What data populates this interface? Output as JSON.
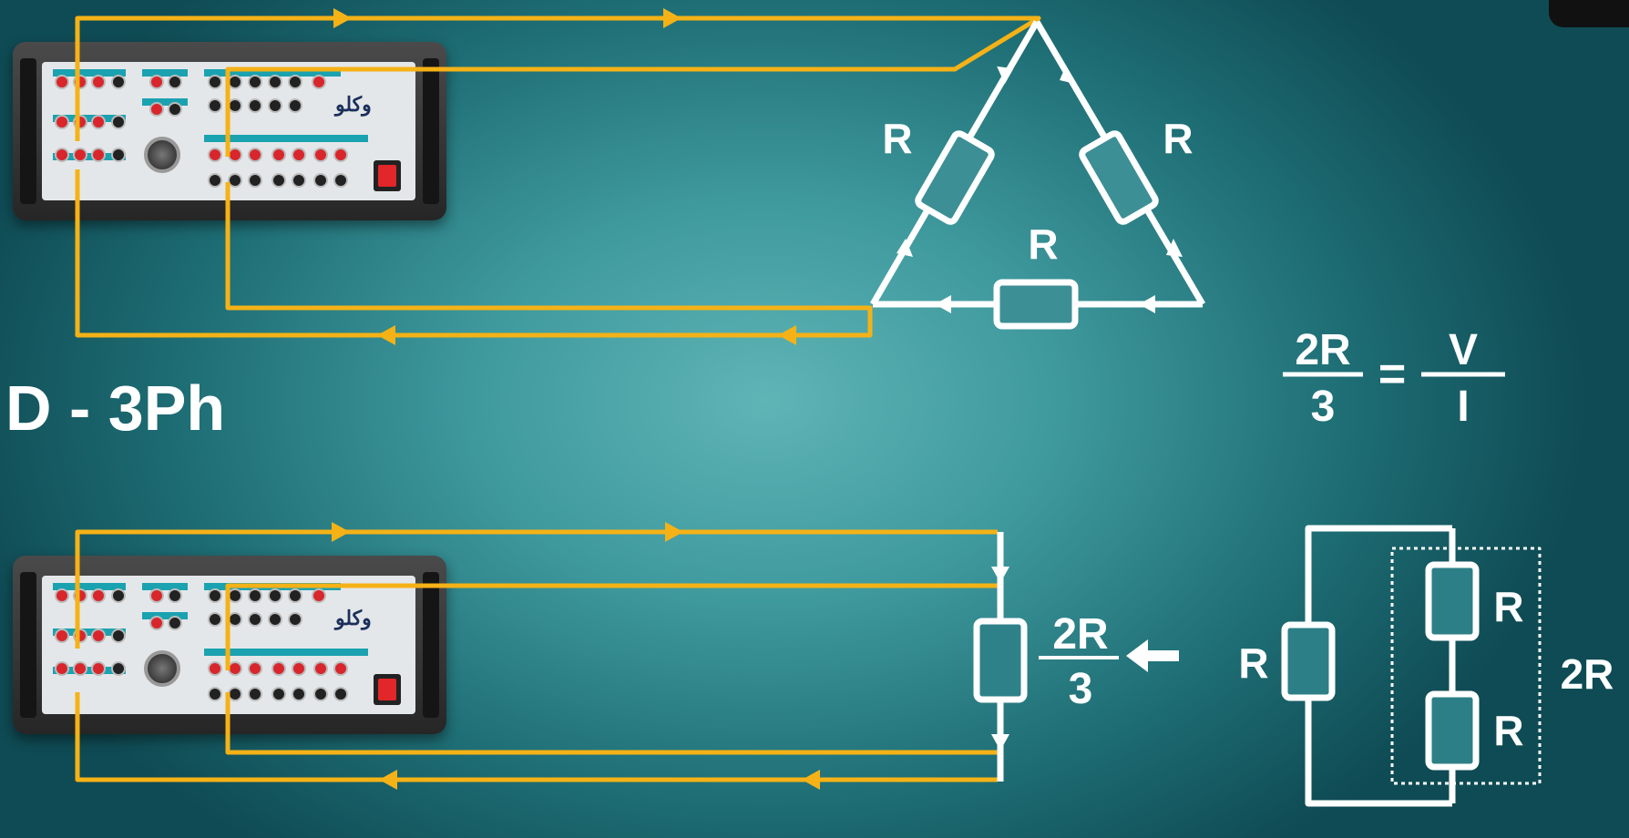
{
  "title": "D - 3Ph",
  "delta": {
    "r_left": "R",
    "r_right": "R",
    "r_bottom": "R"
  },
  "equation": {
    "lhs_num": "2R",
    "lhs_den": "3",
    "equals": "=",
    "rhs_num": "V",
    "rhs_den": "I"
  },
  "equivalent": {
    "num": "2R",
    "den": "3"
  },
  "parallel": {
    "r_single": "R",
    "r_top": "R",
    "r_bottom": "R",
    "r_series_label": "2R"
  },
  "device": {
    "logo": "وکلو"
  },
  "colors": {
    "wire": "#f5b216",
    "circuit": "#ffffff",
    "background": "#3f9a9e"
  }
}
